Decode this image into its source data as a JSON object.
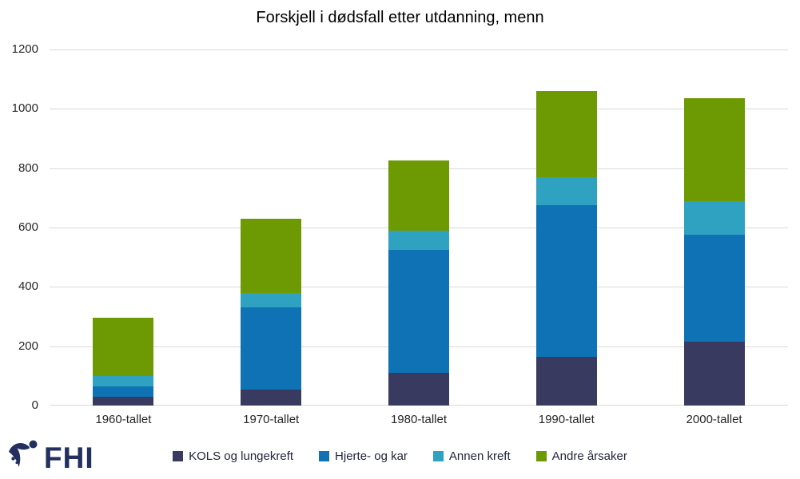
{
  "title": "Forskjell i dødsfall etter utdanning, menn",
  "logo": {
    "text": "FHI",
    "color": "#232f5e"
  },
  "chart_data": {
    "type": "bar",
    "stacked": true,
    "title": "Forskjell i dødsfall etter utdanning, menn",
    "categories": [
      "1960-tallet",
      "1970-tallet",
      "1980-tallet",
      "1990-tallet",
      "2000-tallet"
    ],
    "series": [
      {
        "name": "KOLS og lungekreft",
        "color": "#383b5f",
        "values": [
          30,
          55,
          110,
          165,
          215
        ]
      },
      {
        "name": "Hjerte- og kar",
        "color": "#0e72b5",
        "values": [
          35,
          275,
          415,
          510,
          360
        ]
      },
      {
        "name": "Annen kreft",
        "color": "#2ea2c0",
        "values": [
          35,
          50,
          65,
          95,
          115
        ]
      },
      {
        "name": "Andre årsaker",
        "color": "#6d9a02",
        "values": [
          195,
          250,
          235,
          290,
          345
        ]
      }
    ],
    "totals": [
      295,
      630,
      825,
      1060,
      1035
    ],
    "xlabel": "",
    "ylabel": "",
    "ylim": [
      0,
      1200
    ],
    "yticks": [
      0,
      200,
      400,
      600,
      800,
      1000,
      1200
    ],
    "grid": "horizontal",
    "grid_color": "#d9d9d9",
    "axis_text_color": "#262626",
    "legend_position": "bottom"
  }
}
